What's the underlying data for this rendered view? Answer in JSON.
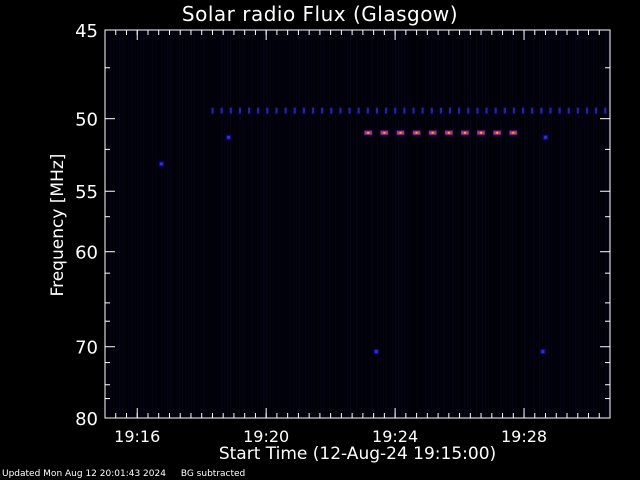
{
  "chart_data": {
    "type": "heatmap",
    "title": "Solar radio Flux (Glasgow)",
    "xlabel": "Start Time (12-Aug-24 19:15:00)",
    "ylabel": "Frequency [MHz]",
    "x_range": [
      "19:15:00",
      "19:30:40"
    ],
    "x_ticks": [
      "19:16",
      "19:20",
      "19:24",
      "19:28"
    ],
    "y_range": [
      45,
      80
    ],
    "y_scale": "reciprocal",
    "y_ticks": [
      45,
      50,
      55,
      60,
      70,
      80
    ],
    "colorscale": [
      "#000000",
      "#0a0a50",
      "#1a1aff",
      "#ff2020",
      "#ffaa00"
    ],
    "features": [
      {
        "kind": "periodic-dashes",
        "freq_mhz": 49.5,
        "from": "19:18:20",
        "to": "19:30:40",
        "period_s": 17,
        "color": "#1f1fd0"
      },
      {
        "kind": "periodic-dashes",
        "freq_mhz": 50.9,
        "from": "19:23:10",
        "to": "19:28:00",
        "period_s": 30,
        "color": "#ff2a10"
      },
      {
        "kind": "spot",
        "time": "19:16:45",
        "freq_mhz": 53.0,
        "color": "#2a2aff"
      },
      {
        "kind": "spot",
        "time": "19:18:50",
        "freq_mhz": 51.2,
        "color": "#2a2aff"
      },
      {
        "kind": "spot",
        "time": "19:28:40",
        "freq_mhz": 51.2,
        "color": "#2a2aff"
      },
      {
        "kind": "spot",
        "time": "19:23:25",
        "freq_mhz": 70.6,
        "color": "#2a2aff"
      },
      {
        "kind": "spot",
        "time": "19:28:35",
        "freq_mhz": 70.6,
        "color": "#2a2aff"
      }
    ]
  },
  "footer": {
    "updated": "Updated Mon Aug 12 20:01:43 2024",
    "note": "BG subtracted"
  }
}
